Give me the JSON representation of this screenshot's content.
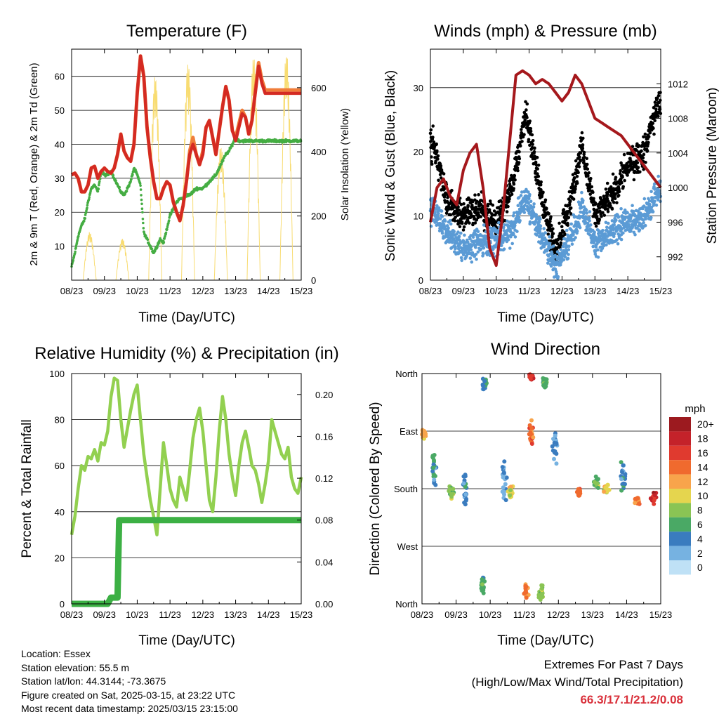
{
  "info": {
    "location": "Location: Essex",
    "elevation": "Station elevation: 55.5 m",
    "latlon": "Station lat/lon: 44.3144; -73.3675",
    "created": "Figure created on Sat, 2025-03-15, at 23:22 UTC",
    "latest": "Most recent data timestamp: 2025/03/15 23:15:00"
  },
  "extremes": {
    "title": "Extremes For Past 7 Days",
    "subtitle": "(High/Low/Max Wind/Total Precipitation)",
    "values": "66.3/17.1/21.2/0.08"
  },
  "colors": {
    "temp2m": "#d42a22",
    "temp9m": "#f07d3a",
    "dewpoint": "#45ad43",
    "solar": "#f8dc72",
    "wind": "#5b9bd5",
    "gust": "#000000",
    "pressure": "#a5181c",
    "rh": "#92d050",
    "precip": "#3cb044"
  },
  "chart_data": [
    {
      "type": "line",
      "title": "Temperature (F)",
      "xlabel": "Time (Day/UTC)",
      "ylabel": "2m & 9m T (Red, Orange) & 2m Td (Green)",
      "y2label": "Solar Insolation (Yellow)",
      "xticks": [
        "08/23",
        "09/23",
        "10/23",
        "11/23",
        "12/23",
        "13/23",
        "14/23",
        "15/23"
      ],
      "x": [
        0,
        0.1,
        0.2,
        0.3,
        0.4,
        0.5,
        0.6,
        0.7,
        0.8,
        0.9,
        1,
        1.1,
        1.2,
        1.3,
        1.4,
        1.5,
        1.6,
        1.7,
        1.8,
        1.9,
        2,
        2.1,
        2.2,
        2.3,
        2.4,
        2.5,
        2.6,
        2.7,
        2.8,
        2.9,
        3,
        3.1,
        3.2,
        3.3,
        3.4,
        3.5,
        3.6,
        3.7,
        3.8,
        3.9,
        4,
        4.1,
        4.2,
        4.3,
        4.4,
        4.5,
        4.6,
        4.7,
        4.8,
        4.9,
        5,
        5.1,
        5.2,
        5.3,
        5.4,
        5.5,
        5.6,
        5.7,
        5.8,
        5.9,
        6,
        6.1,
        6.2,
        6.3,
        6.4,
        6.5,
        6.6,
        6.7,
        6.8,
        6.9,
        7
      ],
      "ylim": [
        0,
        68
      ],
      "yticks": [
        10,
        20,
        30,
        40,
        50,
        60
      ],
      "y2lim": [
        0,
        720
      ],
      "y2ticks": [
        0,
        200,
        400,
        600
      ],
      "series": [
        {
          "name": "2m T",
          "color_key": "temp2m",
          "values": [
            31,
            31.5,
            30,
            26,
            26,
            28,
            33,
            33.5,
            30,
            32,
            33,
            32,
            31.5,
            33,
            37,
            43,
            38,
            36,
            35,
            40,
            55,
            66,
            60,
            45,
            36,
            29,
            24,
            24,
            27,
            29,
            28,
            23,
            20,
            17.5,
            22,
            29,
            37,
            40,
            37,
            34,
            37,
            45,
            47,
            42,
            37,
            44,
            51,
            57,
            53,
            44,
            41,
            45,
            49,
            48,
            43,
            47,
            55,
            63,
            58,
            55,
            55,
            55,
            55,
            55,
            55,
            55,
            55,
            55,
            55,
            55,
            55
          ]
        },
        {
          "name": "9m T",
          "color_key": "temp9m",
          "values": [
            31,
            31.5,
            30,
            26,
            26,
            28,
            33,
            33.5,
            30,
            32,
            33,
            32,
            31.5,
            33,
            37,
            43,
            38,
            36,
            35,
            40,
            55,
            66,
            60,
            45,
            36,
            29,
            24,
            24,
            27,
            29,
            28,
            23,
            20,
            17.5,
            22,
            29,
            38,
            42,
            37,
            34,
            38,
            45,
            47,
            42,
            37,
            44,
            51,
            57,
            53,
            44,
            42,
            46,
            50,
            48,
            43,
            47,
            56,
            64,
            59,
            56,
            56,
            56,
            56,
            56,
            56,
            56,
            56,
            56,
            56,
            56,
            56
          ]
        },
        {
          "name": "2m Td",
          "color_key": "dewpoint",
          "values": [
            4,
            8,
            13,
            16,
            18,
            23,
            27,
            28,
            26,
            32,
            31,
            31,
            32,
            30,
            28,
            26,
            25,
            27,
            29,
            33,
            31,
            28,
            14,
            12,
            10,
            8,
            10,
            12,
            11,
            15,
            19,
            21,
            23,
            24,
            24,
            25,
            25,
            26,
            27,
            27,
            27,
            28,
            29,
            30,
            31,
            33,
            35,
            37,
            38,
            40,
            42,
            41,
            41,
            41,
            41,
            41,
            41,
            41,
            41,
            41,
            41,
            41,
            41,
            41,
            41,
            41,
            41,
            41,
            41,
            41,
            41
          ]
        }
      ],
      "solar_peaks": [
        {
          "day": 0.55,
          "peak": 150
        },
        {
          "day": 1.55,
          "peak": 130
        },
        {
          "day": 2.55,
          "peak": 640
        },
        {
          "day": 3.55,
          "peak": 680
        },
        {
          "day": 4.55,
          "peak": 420
        },
        {
          "day": 5.55,
          "peak": 700
        },
        {
          "day": 6.55,
          "peak": 710
        }
      ]
    },
    {
      "type": "scatter",
      "title": "Winds (mph) & Pressure (mb)",
      "xlabel": "Time (Day/UTC)",
      "ylabel": "Sonic Wind & Gust (Blue, Black)",
      "y2label": "Station Pressure (Maroon)",
      "xticks": [
        "08/23",
        "09/23",
        "10/23",
        "11/23",
        "12/23",
        "13/23",
        "14/23",
        "15/23"
      ],
      "ylim": [
        0,
        36
      ],
      "yticks": [
        0,
        10,
        20,
        30
      ],
      "y2lim": [
        989.3,
        1016
      ],
      "y2ticks": [
        992,
        996,
        1000,
        1004,
        1008,
        1012
      ],
      "wind_centers": [
        {
          "day": 0.1,
          "wind": 11,
          "gust": 21
        },
        {
          "day": 0.5,
          "wind": 7,
          "gust": 12
        },
        {
          "day": 1.0,
          "wind": 5,
          "gust": 10
        },
        {
          "day": 1.5,
          "wind": 6,
          "gust": 11
        },
        {
          "day": 2.0,
          "wind": 6,
          "gust": 9
        },
        {
          "day": 2.5,
          "wind": 8,
          "gust": 15
        },
        {
          "day": 2.9,
          "wind": 13,
          "gust": 26
        },
        {
          "day": 3.3,
          "wind": 8,
          "gust": 15
        },
        {
          "day": 3.8,
          "wind": 2,
          "gust": 4
        },
        {
          "day": 4.3,
          "wind": 7,
          "gust": 13
        },
        {
          "day": 4.6,
          "wind": 11,
          "gust": 22
        },
        {
          "day": 5.0,
          "wind": 6,
          "gust": 10
        },
        {
          "day": 5.5,
          "wind": 7,
          "gust": 13
        },
        {
          "day": 5.9,
          "wind": 9,
          "gust": 17
        },
        {
          "day": 6.5,
          "wind": 10,
          "gust": 20
        },
        {
          "day": 6.9,
          "wind": 14,
          "gust": 27
        }
      ],
      "pressure": {
        "x": [
          0,
          0.2,
          0.4,
          0.6,
          0.8,
          1,
          1.2,
          1.4,
          1.6,
          1.8,
          2,
          2.2,
          2.4,
          2.6,
          2.8,
          3,
          3.2,
          3.4,
          3.6,
          3.8,
          4,
          4.2,
          4.4,
          4.6,
          4.8,
          5,
          5.2,
          5.4,
          5.6,
          5.8,
          6,
          6.2,
          6.4,
          6.6,
          6.8,
          7
        ],
        "values": [
          996,
          1000,
          1001,
          999,
          998,
          1002,
          1004,
          1005,
          1000,
          993,
          991,
          997,
          1005,
          1013,
          1013.5,
          1013,
          1012,
          1012.5,
          1012,
          1011,
          1010,
          1011,
          1013,
          1012,
          1010,
          1008,
          1007.5,
          1007,
          1006.5,
          1006,
          1005,
          1004,
          1003,
          1002,
          1001,
          1000
        ]
      }
    },
    {
      "type": "line",
      "title": "Relative Humidity (%) & Precipitation (in)",
      "xlabel": "Time (Day/UTC)",
      "ylabel": "Percent & Total Rainfall",
      "xticks": [
        "08/23",
        "09/23",
        "10/23",
        "11/23",
        "12/23",
        "13/23",
        "14/23",
        "15/23"
      ],
      "ylim": [
        0,
        100
      ],
      "yticks": [
        0,
        20,
        40,
        60,
        80,
        100
      ],
      "y2lim": [
        0,
        0.22
      ],
      "y2ticks": [
        "0.00",
        "0.04",
        "0.08",
        "0.12",
        "0.16",
        "0.20"
      ],
      "series": [
        {
          "name": "Relative Humidity",
          "color_key": "rh",
          "x": [
            0,
            0.1,
            0.2,
            0.3,
            0.4,
            0.5,
            0.6,
            0.7,
            0.8,
            0.9,
            1,
            1.1,
            1.2,
            1.3,
            1.4,
            1.5,
            1.6,
            1.7,
            1.8,
            1.9,
            2,
            2.1,
            2.2,
            2.3,
            2.4,
            2.5,
            2.6,
            2.7,
            2.8,
            2.9,
            3,
            3.1,
            3.2,
            3.3,
            3.4,
            3.5,
            3.6,
            3.7,
            3.8,
            3.9,
            4,
            4.1,
            4.2,
            4.3,
            4.4,
            4.5,
            4.6,
            4.7,
            4.8,
            4.9,
            5,
            5.1,
            5.2,
            5.3,
            5.4,
            5.5,
            5.6,
            5.7,
            5.8,
            5.9,
            6,
            6.1,
            6.2,
            6.3,
            6.4,
            6.5,
            6.6,
            6.7,
            6.8,
            6.9,
            7
          ],
          "values": [
            30,
            38,
            50,
            60,
            58,
            64,
            63,
            67,
            62,
            70,
            69,
            75,
            90,
            98,
            97,
            80,
            68,
            76,
            84,
            91,
            95,
            80,
            65,
            55,
            45,
            38,
            30,
            50,
            70,
            60,
            50,
            45,
            42,
            55,
            50,
            45,
            58,
            72,
            80,
            85,
            75,
            60,
            45,
            40,
            55,
            75,
            90,
            80,
            65,
            55,
            47,
            60,
            70,
            75,
            68,
            60,
            58,
            52,
            44,
            52,
            62,
            80,
            75,
            70,
            65,
            63,
            68,
            55,
            50,
            48,
            55
          ]
        },
        {
          "name": "Total Precipitation",
          "color_key": "precip",
          "x": [
            0,
            1.1,
            1.2,
            1.4,
            1.45,
            1.5,
            2,
            3,
            4,
            5,
            6,
            7
          ],
          "values": [
            0,
            0,
            0.006,
            0.006,
            0.08,
            0.08,
            0.08,
            0.08,
            0.08,
            0.08,
            0.08,
            0.08
          ]
        }
      ]
    },
    {
      "type": "scatter",
      "title": "Wind Direction",
      "xlabel": "Time (Day/UTC)",
      "ylabel": "Direction (Colored By Speed)",
      "xticks": [
        "08/23",
        "09/23",
        "10/23",
        "11/23",
        "12/23",
        "13/23",
        "14/23",
        "15/23"
      ],
      "ylim": [
        0,
        360
      ],
      "yticks": [
        "North",
        "East",
        "South",
        "West",
        "North"
      ],
      "legend_title": "mph",
      "legend_levels": [
        "20+",
        "18",
        "16",
        "14",
        "12",
        "10",
        "8",
        "6",
        "4",
        "2",
        "0"
      ],
      "legend_colors": [
        "#9c1a1f",
        "#c4222a",
        "#e03a2f",
        "#f06a2e",
        "#f8a44b",
        "#e5d54e",
        "#8ac454",
        "#4aa965",
        "#3a7cbf",
        "#76b2e1",
        "#bfe1f6"
      ],
      "clusters": [
        {
          "day": 0.05,
          "dir": 265,
          "spread": 12,
          "speed": 12
        },
        {
          "day": 0.35,
          "dir": 210,
          "spread": 40,
          "speed": 5
        },
        {
          "day": 0.85,
          "dir": 175,
          "spread": 20,
          "speed": 8
        },
        {
          "day": 1.25,
          "dir": 180,
          "spread": 40,
          "speed": 4
        },
        {
          "day": 1.8,
          "dir": 30,
          "spread": 20,
          "speed": 6
        },
        {
          "day": 1.85,
          "dir": 345,
          "spread": 15,
          "speed": 4
        },
        {
          "day": 2.4,
          "dir": 190,
          "spread": 50,
          "speed": 3
        },
        {
          "day": 2.6,
          "dir": 175,
          "spread": 15,
          "speed": 10
        },
        {
          "day": 3.2,
          "dir": 265,
          "spread": 25,
          "speed": 14
        },
        {
          "day": 3.2,
          "dir": 355,
          "spread": 8,
          "speed": 17
        },
        {
          "day": 3.05,
          "dir": 20,
          "spread": 15,
          "speed": 13
        },
        {
          "day": 3.5,
          "dir": 20,
          "spread": 20,
          "speed": 8
        },
        {
          "day": 3.6,
          "dir": 345,
          "spread": 12,
          "speed": 6
        },
        {
          "day": 3.9,
          "dir": 250,
          "spread": 40,
          "speed": 3
        },
        {
          "day": 4.6,
          "dir": 175,
          "spread": 10,
          "speed": 14
        },
        {
          "day": 5.1,
          "dir": 190,
          "spread": 10,
          "speed": 7
        },
        {
          "day": 5.4,
          "dir": 180,
          "spread": 10,
          "speed": 10
        },
        {
          "day": 5.9,
          "dir": 195,
          "spread": 35,
          "speed": 4
        },
        {
          "day": 6.3,
          "dir": 160,
          "spread": 10,
          "speed": 14
        },
        {
          "day": 6.8,
          "dir": 165,
          "spread": 12,
          "speed": 17
        }
      ]
    }
  ]
}
